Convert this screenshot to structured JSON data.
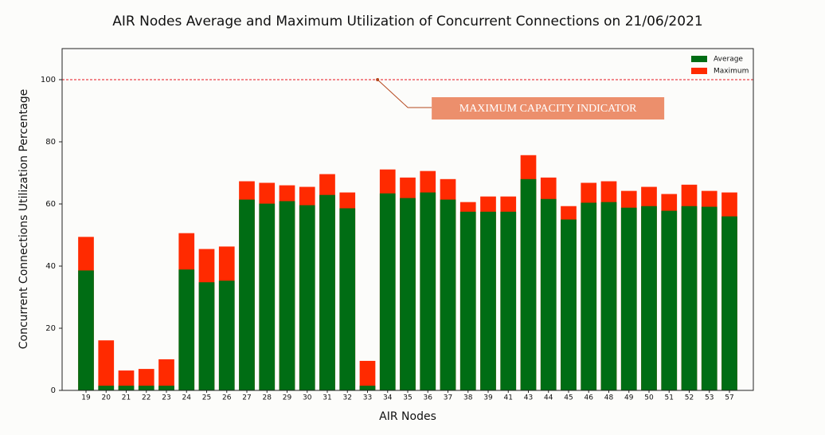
{
  "chart_data": {
    "type": "bar",
    "barmode": "overlay",
    "title": "AIR Nodes Average and Maximum Utilization of Concurrent Connections on 21/06/2021",
    "x_label": "AIR Nodes",
    "y_label": "Concurrent Connections Utilization Percentage",
    "categories": [
      "19",
      "20",
      "21",
      "22",
      "23",
      "24",
      "25",
      "26",
      "27",
      "28",
      "29",
      "30",
      "31",
      "32",
      "33",
      "34",
      "35",
      "36",
      "37",
      "38",
      "39",
      "41",
      "43",
      "44",
      "45",
      "46",
      "48",
      "49",
      "50",
      "51",
      "52",
      "53",
      "57"
    ],
    "series": [
      {
        "name": "Maximum",
        "color": "#ff2a00",
        "values": [
          49.4,
          16.1,
          6.4,
          6.9,
          10,
          50.6,
          45.5,
          46.3,
          67.3,
          66.8,
          66,
          65.5,
          69.6,
          63.7,
          9.5,
          71.1,
          68.5,
          70.6,
          68,
          60.6,
          62.4,
          62.4,
          75.7,
          68.5,
          59.3,
          66.8,
          67.3,
          64.2,
          65.5,
          63.2,
          66.2,
          64.2,
          63.7
        ]
      },
      {
        "name": "Average",
        "color": "#006d14",
        "values": [
          38.6,
          1.5,
          1.5,
          1.5,
          1.5,
          38.9,
          34.8,
          35.3,
          61.4,
          60.1,
          60.9,
          59.6,
          62.9,
          58.6,
          1.5,
          63.4,
          61.9,
          63.7,
          61.4,
          57.5,
          57.5,
          57.5,
          68,
          61.6,
          55,
          60.4,
          60.6,
          58.8,
          59.3,
          57.8,
          59.3,
          59.1,
          56
        ]
      }
    ],
    "legend_order": [
      1,
      0
    ],
    "legend": "upper right",
    "ylim": [
      0,
      110
    ],
    "yticks": [
      0,
      20,
      40,
      60,
      80,
      100
    ],
    "hline": {
      "value": 100,
      "color": "#e8141e"
    },
    "annotation": {
      "text": "MAXIMUM CAPACITY INDICATOR",
      "x": "34",
      "y": 100,
      "color": "#ec8f6c"
    }
  }
}
